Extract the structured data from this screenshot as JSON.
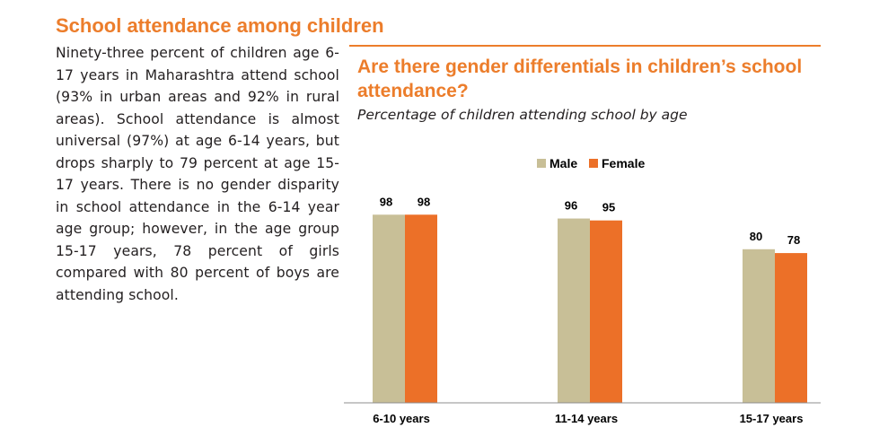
{
  "section": {
    "heading": "School attendance among children",
    "body": "Ninety-three percent of children age 6-17 years in Maharashtra attend school (93% in urban areas and 92% in rural areas). School attendance is almost universal (97%) at age 6-14 years, but drops sharply to 79 percent at age 15-17 years. There is no gender disparity in school attendance in the 6-14 year age group; however, in the age group 15-17 years, 78 percent of girls compared with 80 percent of boys are attending school."
  },
  "colors": {
    "accent": "#ec7d2b",
    "male": "#c8bf97",
    "female": "#ec7028",
    "text": "#231f20"
  },
  "chart_data": {
    "type": "bar",
    "title": "Are there gender differentials in children’s school attendance?",
    "subtitle": "Percentage of children attending school by age",
    "categories": [
      "6-10 years",
      "11-14 years",
      "15-17 years"
    ],
    "series": [
      {
        "name": "Male",
        "values": [
          98,
          96,
          80
        ]
      },
      {
        "name": "Female",
        "values": [
          98,
          95,
          78
        ]
      }
    ],
    "legend": "top-center",
    "ylim": [
      0,
      100
    ],
    "grid": false,
    "xlabel": "",
    "ylabel": ""
  }
}
